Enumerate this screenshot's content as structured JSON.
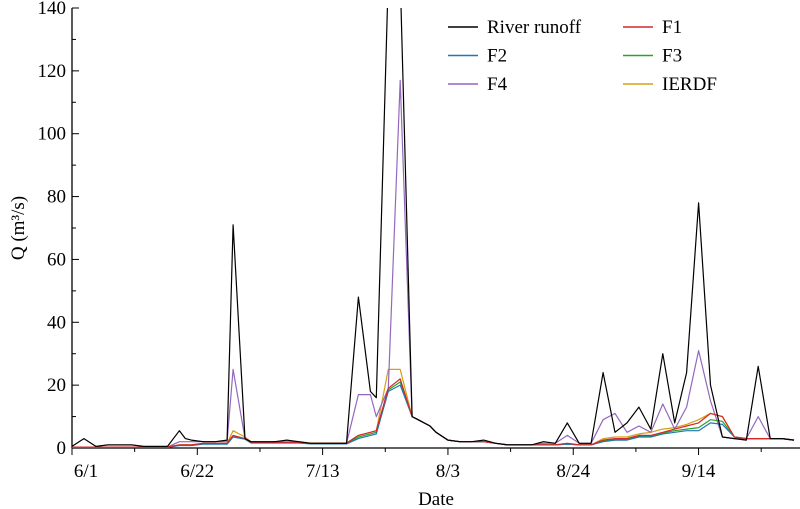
{
  "chart_data": {
    "type": "line",
    "xlabel": "Date",
    "ylabel": "Q (m³/s)",
    "ylim": [
      0,
      140
    ],
    "yticks": [
      0,
      20,
      40,
      60,
      80,
      100,
      120,
      140
    ],
    "xlim": [
      "6/1",
      "9/30"
    ],
    "xticks": [
      "6/1",
      "6/22",
      "7/13",
      "8/3",
      "8/24",
      "9/14"
    ],
    "x": [
      "6/1",
      "6/3",
      "6/5",
      "6/7",
      "6/9",
      "6/11",
      "6/13",
      "6/15",
      "6/17",
      "6/19",
      "6/20",
      "6/21",
      "6/23",
      "6/25",
      "6/27",
      "6/28",
      "6/30",
      "7/1",
      "7/3",
      "7/5",
      "7/7",
      "7/9",
      "7/11",
      "7/13",
      "7/15",
      "7/17",
      "7/19",
      "7/21",
      "7/22",
      "7/24",
      "7/26",
      "7/28",
      "7/29",
      "7/30",
      "7/31",
      "8/1",
      "8/3",
      "8/5",
      "8/7",
      "8/9",
      "8/11",
      "8/13",
      "8/15",
      "8/17",
      "8/19",
      "8/21",
      "8/23",
      "8/25",
      "8/27",
      "8/29",
      "8/31",
      "9/2",
      "9/4",
      "9/6",
      "9/8",
      "9/10",
      "9/12",
      "9/14",
      "9/16",
      "9/18",
      "9/20",
      "9/22",
      "9/24",
      "9/26",
      "9/28",
      "9/30"
    ],
    "legend": {
      "position": "top-right",
      "columns": 2
    },
    "series": [
      {
        "name": "River runoff",
        "color": "#000000",
        "values": [
          0.5,
          3,
          0.5,
          1,
          1,
          1,
          0.5,
          0.5,
          0.5,
          5.5,
          3,
          2.5,
          2,
          2,
          2.5,
          71,
          3,
          2,
          2,
          2,
          2.5,
          2,
          1.5,
          1.5,
          1.5,
          1.5,
          48,
          18,
          16,
          150,
          150,
          10,
          9,
          8,
          7,
          5,
          2.5,
          2,
          2,
          2.5,
          1.5,
          1,
          1,
          1,
          2,
          1.5,
          8,
          1.5,
          1.5,
          24,
          5,
          8,
          13,
          6,
          30,
          8,
          24,
          78,
          20,
          3.5,
          3,
          2.5,
          26,
          3,
          3,
          2.5
        ]
      },
      {
        "name": "F1",
        "color": "#d62728",
        "values": [
          0.3,
          0.3,
          0.3,
          0.3,
          0.3,
          0.3,
          0.3,
          0.3,
          0.3,
          1,
          1,
          1,
          1.5,
          1.5,
          1.5,
          4,
          3,
          1.8,
          1.8,
          1.8,
          1.8,
          1.8,
          1.5,
          1.5,
          1.5,
          1.5,
          4,
          5,
          5.5,
          19,
          22,
          10,
          9,
          8,
          7,
          5,
          2.5,
          2,
          2,
          2,
          1.5,
          1,
          1,
          1,
          1,
          1,
          1.5,
          1,
          1,
          2.5,
          3,
          3,
          4,
          4,
          5,
          6,
          7,
          8,
          11,
          10,
          3.5,
          3,
          3,
          3,
          3,
          2.5
        ]
      },
      {
        "name": "F2",
        "color": "#1f77b4",
        "values": [
          0.2,
          0.2,
          0.2,
          0.2,
          0.2,
          0.2,
          0.2,
          0.2,
          0.2,
          0.8,
          0.8,
          0.8,
          1.2,
          1.2,
          1.2,
          3.5,
          2.8,
          1.6,
          1.6,
          1.6,
          1.6,
          1.6,
          1.3,
          1.3,
          1.3,
          1.3,
          3,
          4,
          4.5,
          18,
          20,
          10,
          9,
          8,
          7,
          5,
          2.5,
          2,
          2,
          2,
          1.5,
          1,
          1,
          1,
          1,
          1,
          1.2,
          1,
          1,
          2,
          2.5,
          2.5,
          3.5,
          3.5,
          4.5,
          5,
          5.5,
          5.5,
          8,
          7.5,
          3.5,
          3,
          3,
          3,
          3,
          2.5
        ]
      },
      {
        "name": "F3",
        "color": "#2ca02c",
        "values": [
          0.2,
          0.2,
          0.2,
          0.2,
          0.2,
          0.2,
          0.2,
          0.2,
          0.2,
          0.9,
          0.9,
          0.9,
          1.3,
          1.3,
          1.3,
          3.8,
          2.9,
          1.7,
          1.7,
          1.7,
          1.7,
          1.7,
          1.4,
          1.4,
          1.4,
          1.4,
          3.5,
          4.5,
          5,
          18.5,
          21,
          10,
          9,
          8,
          7,
          5,
          2.5,
          2,
          2,
          2,
          1.5,
          1,
          1,
          1,
          1,
          1,
          1.3,
          1,
          1,
          2.2,
          2.8,
          2.8,
          3.8,
          3.8,
          4.8,
          5.5,
          6,
          6.5,
          9,
          8.5,
          3.5,
          3,
          3,
          3,
          3,
          2.5
        ]
      },
      {
        "name": "F4",
        "color": "#9467bd",
        "values": [
          0.3,
          0.3,
          0.3,
          0.3,
          0.3,
          0.3,
          0.3,
          0.3,
          0.3,
          2,
          2,
          2,
          2,
          2,
          2,
          25,
          3,
          1.8,
          1.8,
          1.8,
          1.8,
          1.8,
          1.5,
          1.5,
          1.5,
          1.5,
          17,
          17,
          10,
          19,
          117,
          10,
          9,
          8,
          7,
          5,
          2.5,
          2,
          2,
          2,
          1.5,
          1,
          1,
          1,
          1.5,
          1.5,
          4,
          1.5,
          1.5,
          9,
          11,
          5,
          7,
          5,
          14,
          6,
          13,
          31,
          15,
          3.5,
          3,
          3,
          10,
          3,
          3,
          2.5
        ]
      },
      {
        "name": "IERDF",
        "color": "#d4a017",
        "values": [
          0.3,
          0.3,
          0.3,
          0.3,
          0.3,
          0.3,
          0.3,
          0.3,
          0.3,
          1,
          1,
          1,
          1.5,
          1.5,
          1.5,
          5.5,
          3.5,
          2,
          2,
          2,
          2,
          2,
          1.6,
          1.6,
          1.6,
          1.6,
          4,
          5,
          5.5,
          25,
          25,
          10,
          9,
          8,
          7,
          5,
          2.5,
          2,
          2,
          2,
          1.5,
          1,
          1,
          1,
          1,
          1,
          1.5,
          1,
          1,
          3,
          3.5,
          3.5,
          4.5,
          5,
          6,
          6.5,
          7.5,
          9,
          11,
          10,
          3.5,
          3,
          3,
          3,
          3,
          2.5
        ]
      }
    ]
  }
}
